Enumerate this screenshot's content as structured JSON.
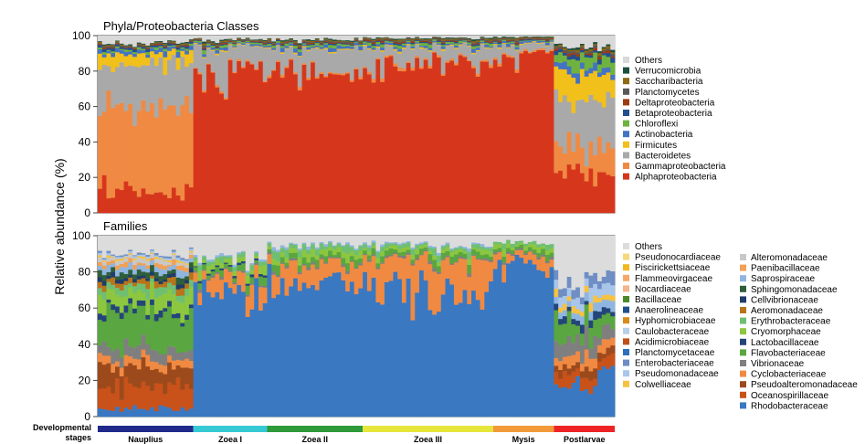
{
  "figure": {
    "ylabel": "Relative abundance (%)",
    "stage_axis_label": "Developmental stages",
    "stages": [
      {
        "name": "Nauplius",
        "color": "#1f2a8a"
      },
      {
        "name": "Zoea I",
        "color": "#35c9d4"
      },
      {
        "name": "Zoea II",
        "color": "#2e9a3a"
      },
      {
        "name": "Zoea III",
        "color": "#e6e63a"
      },
      {
        "name": "Mysis",
        "color": "#f29a3a"
      },
      {
        "name": "Postlarvae",
        "color": "#ee2424"
      }
    ]
  },
  "chart_data": [
    {
      "type": "bar",
      "stacked": true,
      "title": "Phyla/Proteobacteria Classes",
      "ylim": [
        0,
        100
      ],
      "yticks": [
        "0",
        "20",
        "40",
        "60",
        "80",
        "100"
      ],
      "legend_position": "right",
      "series": [
        {
          "name": "Alphaproteobacteria",
          "color": "#d6371c"
        },
        {
          "name": "Gammaproteobacteria",
          "color": "#f08a43"
        },
        {
          "name": "Bacteroidetes",
          "color": "#a9a9a9"
        },
        {
          "name": "Firmicutes",
          "color": "#f2c01a"
        },
        {
          "name": "Actinobacteria",
          "color": "#4472c4"
        },
        {
          "name": "Chloroflexi",
          "color": "#6fb33f"
        },
        {
          "name": "Betaproteobacteria",
          "color": "#234f8f"
        },
        {
          "name": "Deltaproteobacteria",
          "color": "#9e3a14"
        },
        {
          "name": "Planctomycetes",
          "color": "#595959"
        },
        {
          "name": "Saccharibacteria",
          "color": "#8e6a12"
        },
        {
          "name": "Verrucomicrobia",
          "color": "#1f4e3d"
        },
        {
          "name": "Others",
          "color": "#d9d9d9"
        }
      ],
      "stage_sample_counts": [
        22,
        17,
        22,
        30,
        14,
        14
      ],
      "stage_profiles": [
        {
          "Alphaproteobacteria": 12,
          "Gammaproteobacteria": 48,
          "Bacteroidetes": 24,
          "Firmicutes": 6,
          "Actinobacteria": 2,
          "Chloroflexi": 1,
          "Betaproteobacteria": 1,
          "Deltaproteobacteria": 0.5,
          "Planctomycetes": 0.5,
          "Saccharibacteria": 0.5,
          "Verrucomicrobia": 0.5,
          "Others": 4
        },
        {
          "Alphaproteobacteria": 78,
          "Gammaproteobacteria": 1,
          "Bacteroidetes": 14,
          "Firmicutes": 0.5,
          "Actinobacteria": 1,
          "Chloroflexi": 1,
          "Betaproteobacteria": 0.5,
          "Deltaproteobacteria": 0.5,
          "Planctomycetes": 0.5,
          "Saccharibacteria": 0.5,
          "Verrucomicrobia": 0.5,
          "Others": 2
        },
        {
          "Alphaproteobacteria": 80,
          "Gammaproteobacteria": 1,
          "Bacteroidetes": 12,
          "Firmicutes": 0.5,
          "Actinobacteria": 1.5,
          "Chloroflexi": 1,
          "Betaproteobacteria": 0.5,
          "Deltaproteobacteria": 0.5,
          "Planctomycetes": 0.5,
          "Saccharibacteria": 0.5,
          "Verrucomicrobia": 0.5,
          "Others": 2
        },
        {
          "Alphaproteobacteria": 86,
          "Gammaproteobacteria": 1,
          "Bacteroidetes": 8,
          "Firmicutes": 0.5,
          "Actinobacteria": 1,
          "Chloroflexi": 1,
          "Betaproteobacteria": 0.5,
          "Deltaproteobacteria": 0.5,
          "Planctomycetes": 0.5,
          "Saccharibacteria": 0.5,
          "Verrucomicrobia": 0.5,
          "Others": 1
        },
        {
          "Alphaproteobacteria": 90,
          "Gammaproteobacteria": 1,
          "Bacteroidetes": 5,
          "Firmicutes": 0.5,
          "Actinobacteria": 1,
          "Chloroflexi": 0.5,
          "Betaproteobacteria": 0.5,
          "Deltaproteobacteria": 0.5,
          "Planctomycetes": 0.5,
          "Saccharibacteria": 0.5,
          "Verrucomicrobia": 0.5,
          "Others": 0.5
        },
        {
          "Alphaproteobacteria": 22,
          "Gammaproteobacteria": 14,
          "Bacteroidetes": 26,
          "Firmicutes": 16,
          "Actinobacteria": 4,
          "Chloroflexi": 6,
          "Betaproteobacteria": 2,
          "Deltaproteobacteria": 1,
          "Planctomycetes": 1,
          "Saccharibacteria": 1,
          "Verrucomicrobia": 1,
          "Others": 6
        }
      ]
    },
    {
      "type": "bar",
      "stacked": true,
      "title": "Families",
      "ylim": [
        0,
        100
      ],
      "yticks": [
        "0",
        "20",
        "40",
        "60",
        "80",
        "100"
      ],
      "legend_position": "right",
      "series": [
        {
          "name": "Rhodobacteraceae",
          "color": "#3a78c2"
        },
        {
          "name": "Oceanospirillaceae",
          "color": "#c8521a"
        },
        {
          "name": "Pseudoalteromonadaceae",
          "color": "#9c4a1c"
        },
        {
          "name": "Cyclobacteriaceae",
          "color": "#f08a43"
        },
        {
          "name": "Vibrionaceae",
          "color": "#7f7f7f"
        },
        {
          "name": "Flavobacteriaceae",
          "color": "#5aa640"
        },
        {
          "name": "Lactobacillaceae",
          "color": "#24457a"
        },
        {
          "name": "Cryomorphaceae",
          "color": "#8dc63f"
        },
        {
          "name": "Erythrobacteraceae",
          "color": "#6fbf73"
        },
        {
          "name": "Aeromonadaceae",
          "color": "#b8741a"
        },
        {
          "name": "Cellvibrionaceae",
          "color": "#1f3c68"
        },
        {
          "name": "Sphingomonadaceae",
          "color": "#2f5f3a"
        },
        {
          "name": "Saprospiraceae",
          "color": "#8fb6e0"
        },
        {
          "name": "Paenibacillaceae",
          "color": "#f2a056"
        },
        {
          "name": "Alteromonadaceae",
          "color": "#c8c8c8"
        },
        {
          "name": "Colwelliaceae",
          "color": "#f5c242"
        },
        {
          "name": "Pseudomonadaceae",
          "color": "#a9c6ea"
        },
        {
          "name": "Enterobacteriaceae",
          "color": "#6e8ec4"
        },
        {
          "name": "Planctomycetaceae",
          "color": "#2f6fbd"
        },
        {
          "name": "Acidimicrobiaceae",
          "color": "#c0501a"
        },
        {
          "name": "Caulobacteraceae",
          "color": "#b9cfe8"
        },
        {
          "name": "Hyphomicrobiaceae",
          "color": "#d98a18"
        },
        {
          "name": "Anaerolineaceae",
          "color": "#1f4f8f"
        },
        {
          "name": "Bacillaceae",
          "color": "#4a8a2a"
        },
        {
          "name": "Nocardiaceae",
          "color": "#f3b58a"
        },
        {
          "name": "Flammeovirgaceae",
          "color": "#f6a86a"
        },
        {
          "name": "Piscirickettsiaceae",
          "color": "#f2b820"
        },
        {
          "name": "Pseudonocardiaceae",
          "color": "#f8d77a"
        },
        {
          "name": "Others",
          "color": "#dcdcdc"
        }
      ],
      "stage_sample_counts": [
        22,
        17,
        22,
        30,
        14,
        14
      ],
      "stage_profiles": [
        {
          "Rhodobacteraceae": 5,
          "Oceanospirillaceae": 12,
          "Pseudoalteromonadaceae": 10,
          "Cyclobacteriaceae": 4,
          "Vibrionaceae": 6,
          "Flavobacteriaceae": 20,
          "Lactobacillaceae": 3,
          "Cryomorphaceae": 8,
          "Erythrobacteraceae": 4,
          "Aeromonadaceae": 3,
          "Cellvibrionaceae": 2,
          "Sphingomonadaceae": 3,
          "Saprospiraceae": 3,
          "Paenibacillaceae": 2,
          "Alteromonadaceae": 2,
          "Colwelliaceae": 1,
          "Pseudomonadaceae": 1,
          "Enterobacteriaceae": 1,
          "Others": 10
        },
        {
          "Rhodobacteraceae": 70,
          "Cyclobacteriaceae": 8,
          "Flavobacteriaceae": 3,
          "Cryomorphaceae": 3,
          "Erythrobacteraceae": 2,
          "Vibrionaceae": 1,
          "Saprospiraceae": 1,
          "Lactobacillaceae": 1,
          "Others": 11
        },
        {
          "Rhodobacteraceae": 74,
          "Cyclobacteriaceae": 10,
          "Flavobacteriaceae": 3,
          "Cryomorphaceae": 3,
          "Erythrobacteraceae": 3,
          "Vibrionaceae": 1,
          "Saprospiraceae": 1,
          "Others": 5
        },
        {
          "Rhodobacteraceae": 68,
          "Cyclobacteriaceae": 18,
          "Flavobacteriaceae": 3,
          "Cryomorphaceae": 2,
          "Erythrobacteraceae": 2,
          "Vibrionaceae": 1,
          "Saprospiraceae": 1,
          "Others": 5
        },
        {
          "Rhodobacteraceae": 84,
          "Cyclobacteriaceae": 5,
          "Flavobacteriaceae": 2,
          "Cryomorphaceae": 2,
          "Erythrobacteraceae": 2,
          "Vibrionaceae": 1,
          "Others": 4
        },
        {
          "Rhodobacteraceae": 20,
          "Oceanospirillaceae": 6,
          "Pseudoalteromonadaceae": 4,
          "Cyclobacteriaceae": 6,
          "Vibrionaceae": 8,
          "Flavobacteriaceae": 10,
          "Pseudomonadaceae": 6,
          "Enterobacteriaceae": 5,
          "Colwelliaceae": 3,
          "Lactobacillaceae": 3,
          "Saprospiraceae": 4,
          "Others": 25
        }
      ]
    }
  ]
}
